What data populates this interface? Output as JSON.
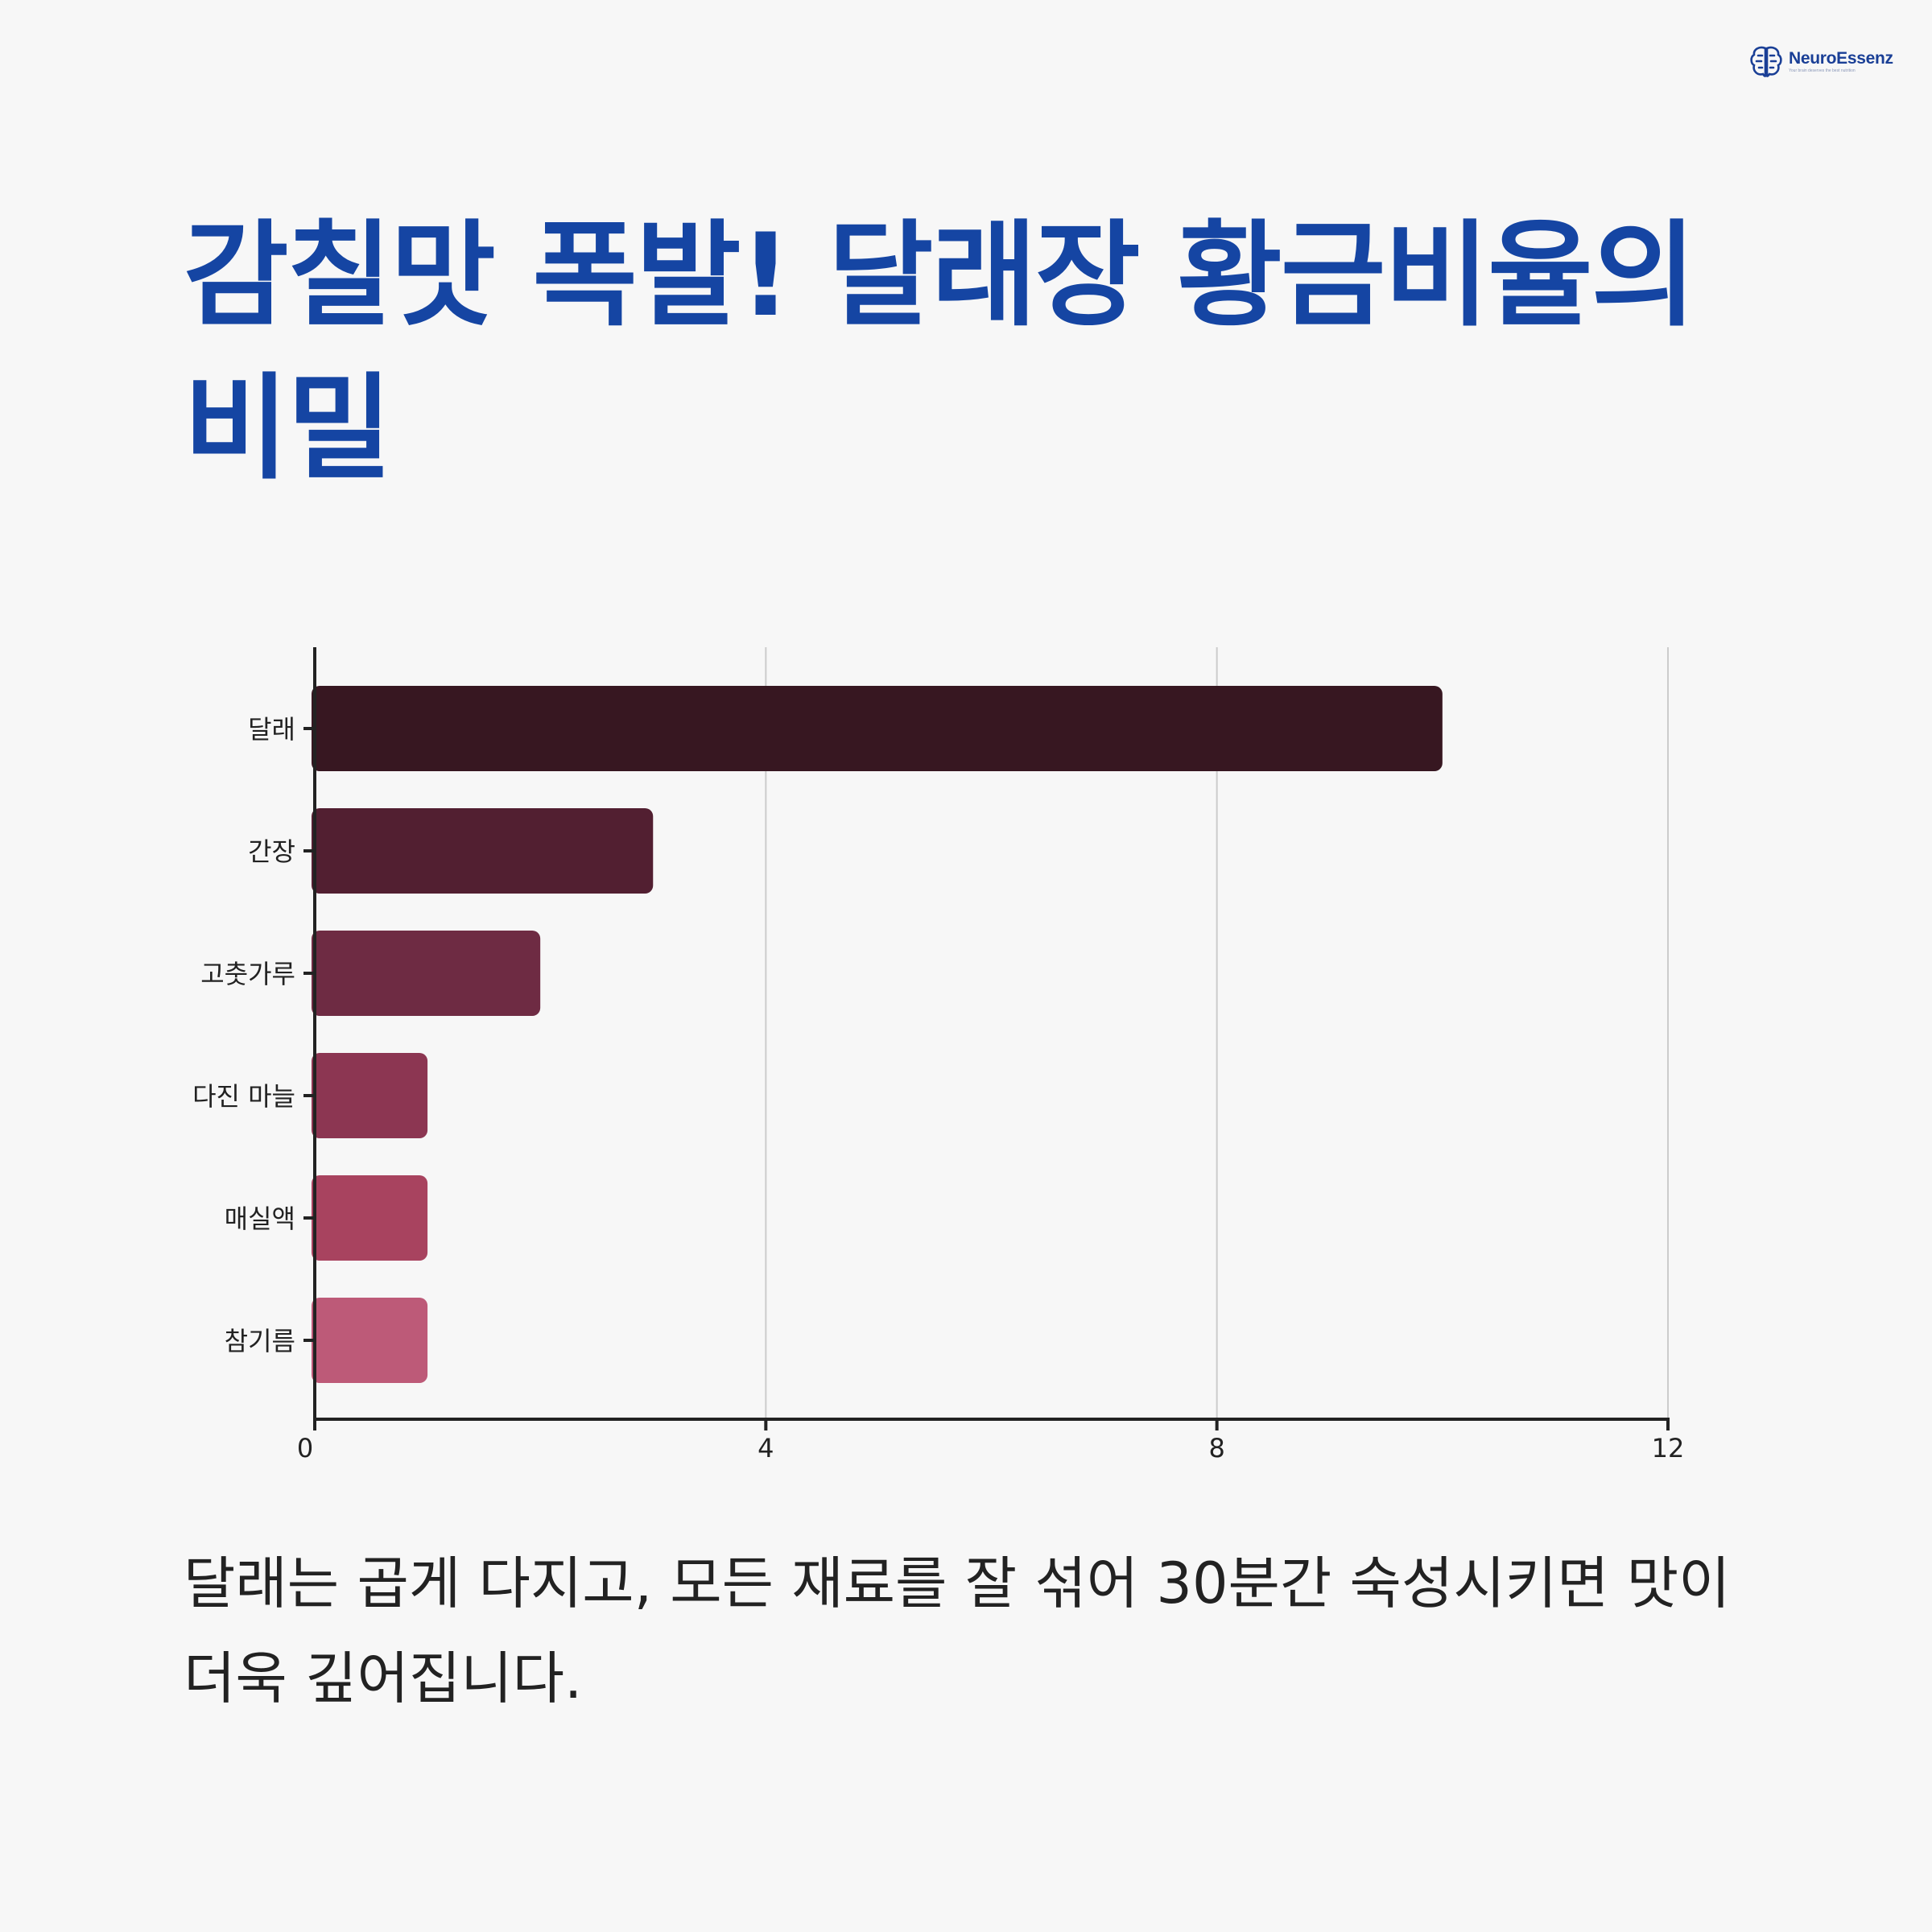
{
  "brand": {
    "name": "NeuroEssenz",
    "tagline": "Your brain deserves the best nutrition",
    "logo_icon": "brain-icon",
    "color": "#1a3f96"
  },
  "title": "감칠맛 폭발! 달래장 황금비율의 비밀",
  "caption": "달래는 곱게 다지고, 모든 재료를 잘 섞어 30분간 숙성시키면 맛이 더욱 깊어집니다.",
  "chart_data": {
    "type": "bar",
    "orientation": "horizontal",
    "categories": [
      "달래",
      "간장",
      "고춧가루",
      "다진 마늘",
      "매실액",
      "참기름"
    ],
    "values": [
      10,
      3,
      2,
      1,
      1,
      1
    ],
    "xlim": [
      0,
      12
    ],
    "xticks": [
      0,
      4,
      8,
      12
    ],
    "grid": "vertical",
    "legend": "none",
    "colors": [
      "#371721",
      "#521f31",
      "#6e2b43",
      "#8c3652",
      "#a8435f",
      "#bd5a78"
    ],
    "title": "",
    "xlabel": "",
    "ylabel": ""
  }
}
